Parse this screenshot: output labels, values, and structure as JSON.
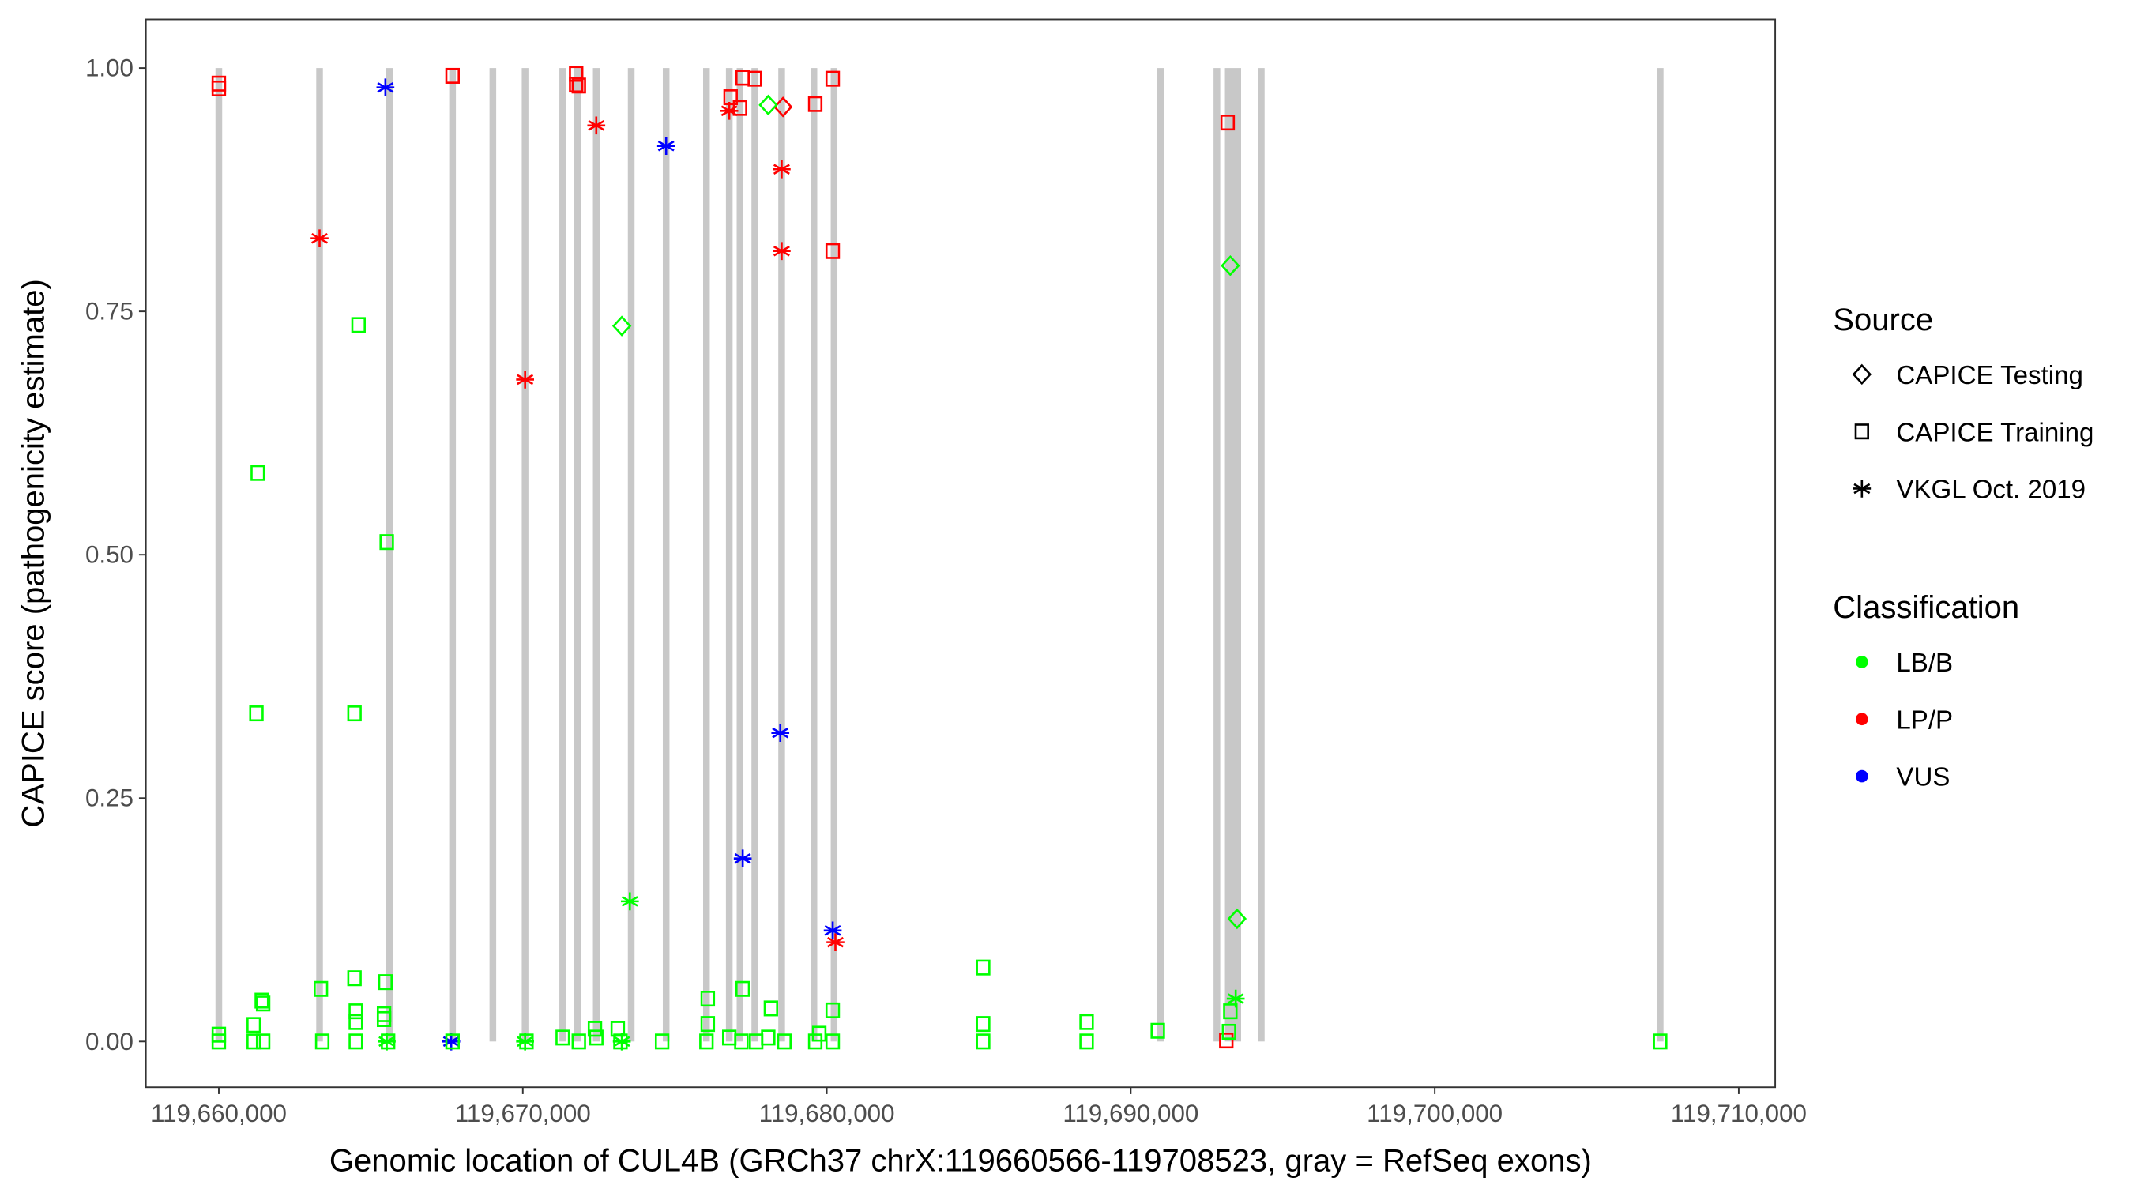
{
  "chart_data": {
    "type": "scatter",
    "xlabel": "Genomic location of CUL4B (GRCh37 chrX:119660566-119708523, gray = RefSeq exons)",
    "ylabel": "CAPICE score (pathogenicity estimate)",
    "xlim": [
      119657600,
      119711200
    ],
    "ylim": [
      -0.047,
      1.05
    ],
    "x_ticks": [
      119660000,
      119670000,
      119680000,
      119690000,
      119700000,
      119710000
    ],
    "x_tick_labels": [
      "119,660,000",
      "119,670,000",
      "119,680,000",
      "119,690,000",
      "119,700,000",
      "119,710,000"
    ],
    "y_ticks": [
      0,
      0.25,
      0.5,
      0.75,
      1.0
    ],
    "y_tick_labels": [
      "0.00",
      "0.25",
      "0.50",
      "0.75",
      "1.00"
    ],
    "grid": false,
    "legend_placement": "right",
    "legend": {
      "source_title": "Source",
      "sources": [
        {
          "label": "CAPICE Testing",
          "shape": "diamond"
        },
        {
          "label": "CAPICE Training",
          "shape": "square"
        },
        {
          "label": "VKGL Oct. 2019",
          "shape": "asterisk"
        }
      ],
      "classification_title": "Classification",
      "classes": [
        {
          "label": "LB/B",
          "color": "#00ff00"
        },
        {
          "label": "LP/P",
          "color": "#ff0000"
        },
        {
          "label": "VUS",
          "color": "#0000ff"
        }
      ]
    },
    "exon_color": "#c8c8c8",
    "exons": [
      [
        119659890,
        119660110
      ],
      [
        119663204,
        119663424
      ],
      [
        119665502,
        119665722
      ],
      [
        119667579,
        119667799
      ],
      [
        119668905,
        119669125
      ],
      [
        119669965,
        119670185
      ],
      [
        119671203,
        119671423
      ],
      [
        119671689,
        119671909
      ],
      [
        119672307,
        119672527
      ],
      [
        119673456,
        119673676
      ],
      [
        119674605,
        119674825
      ],
      [
        119675931,
        119676151
      ],
      [
        119676682,
        119676902
      ],
      [
        119677036,
        119677256
      ],
      [
        119677522,
        119677742
      ],
      [
        119678405,
        119678625
      ],
      [
        119679466,
        119679686
      ],
      [
        119680130,
        119680350
      ],
      [
        119690868,
        119691088
      ],
      [
        119692723,
        119692943
      ],
      [
        119693098,
        119693629
      ],
      [
        119694182,
        119694402
      ],
      [
        119707305,
        119707525
      ]
    ],
    "series": [
      {
        "source": "CAPICE Training",
        "class": "LP/P",
        "points": [
          [
            119660000,
            0.984
          ],
          [
            119660000,
            0.979
          ],
          [
            119667689,
            0.992
          ],
          [
            119671755,
            0.994
          ],
          [
            119671755,
            0.983
          ],
          [
            119671843,
            0.982
          ],
          [
            119677234,
            0.99
          ],
          [
            119677632,
            0.989
          ],
          [
            119676836,
            0.97
          ],
          [
            119677146,
            0.959
          ],
          [
            119679620,
            0.963
          ],
          [
            119680195,
            0.989
          ],
          [
            119680195,
            0.812
          ],
          [
            119693187,
            0.944
          ],
          [
            119693142,
            0.001
          ]
        ]
      },
      {
        "source": "VKGL Oct. 2019",
        "class": "LP/P",
        "points": [
          [
            119663314,
            0.825
          ],
          [
            119670075,
            0.68
          ],
          [
            119672417,
            0.941
          ],
          [
            119676792,
            0.956
          ],
          [
            119678515,
            0.896
          ],
          [
            119678515,
            0.812
          ],
          [
            119680284,
            0.102
          ]
        ]
      },
      {
        "source": "CAPICE Testing",
        "class": "LP/P",
        "points": [
          [
            119678560,
            0.96
          ]
        ]
      },
      {
        "source": "CAPICE Testing",
        "class": "LB/B",
        "points": [
          [
            119678074,
            0.962
          ],
          [
            119673257,
            0.735
          ],
          [
            119693275,
            0.797
          ],
          [
            119693496,
            0.126
          ]
        ]
      },
      {
        "source": "VKGL Oct. 2019",
        "class": "VUS",
        "points": [
          [
            119665480,
            0.98
          ],
          [
            119674715,
            0.92
          ],
          [
            119678471,
            0.317
          ],
          [
            119677234,
            0.188
          ],
          [
            119680195,
            0.114
          ],
          [
            119667645,
            0.0
          ]
        ]
      },
      {
        "source": "VKGL Oct. 2019",
        "class": "LB/B",
        "points": [
          [
            119673522,
            0.144
          ],
          [
            119693452,
            0.044
          ],
          [
            119670075,
            0.0
          ],
          [
            119673257,
            0.0
          ],
          [
            119665524,
            0.0
          ]
        ]
      },
      {
        "source": "CAPICE Training",
        "class": "LB/B",
        "points": [
          [
            119664596,
            0.736
          ],
          [
            119661282,
            0.584
          ],
          [
            119665524,
            0.513
          ],
          [
            119661237,
            0.337
          ],
          [
            119664463,
            0.337
          ],
          [
            119663358,
            0.054
          ],
          [
            119664463,
            0.065
          ],
          [
            119661414,
            0.042
          ],
          [
            119661458,
            0.039
          ],
          [
            119665480,
            0.061
          ],
          [
            119676085,
            0.044
          ],
          [
            119677234,
            0.054
          ],
          [
            119678162,
            0.034
          ],
          [
            119680195,
            0.032
          ],
          [
            119685144,
            0.076
          ],
          [
            119676085,
            0.018
          ],
          [
            119661149,
            0.017
          ],
          [
            119664507,
            0.031
          ],
          [
            119664507,
            0.02
          ],
          [
            119665435,
            0.028
          ],
          [
            119665435,
            0.023
          ],
          [
            119679753,
            0.008
          ],
          [
            119685144,
            0.018
          ],
          [
            119688547,
            0.02
          ],
          [
            119690889,
            0.011
          ],
          [
            119693275,
            0.031
          ],
          [
            119693231,
            0.01
          ],
          [
            119660000,
            0.007
          ],
          [
            119660000,
            0.0
          ],
          [
            119661149,
            0.0
          ],
          [
            119661458,
            0.0
          ],
          [
            119663403,
            0.0
          ],
          [
            119664507,
            0.0
          ],
          [
            119665568,
            0.0
          ],
          [
            119667689,
            0.0
          ],
          [
            119670120,
            0.0
          ],
          [
            119671313,
            0.004
          ],
          [
            119671843,
            0.0
          ],
          [
            119672373,
            0.013
          ],
          [
            119672417,
            0.004
          ],
          [
            119673124,
            0.013
          ],
          [
            119673213,
            0.0
          ],
          [
            119674583,
            0.0
          ],
          [
            119676041,
            0.0
          ],
          [
            119676792,
            0.004
          ],
          [
            119677190,
            0.0
          ],
          [
            119677676,
            0.0
          ],
          [
            119678074,
            0.004
          ],
          [
            119678604,
            0.0
          ],
          [
            119679620,
            0.0
          ],
          [
            119680195,
            0.0
          ],
          [
            119685144,
            0.0
          ],
          [
            119688547,
            0.0
          ],
          [
            119707415,
            0.0
          ]
        ]
      }
    ]
  }
}
